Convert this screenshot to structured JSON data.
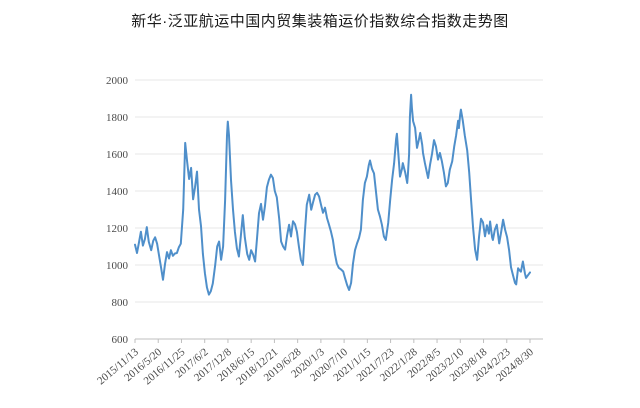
{
  "title": "新华·泛亚航运中国内贸集装箱运价指数综合指数走势图",
  "chart_data": {
    "type": "line",
    "title": "新华·泛亚航运中国内贸集装箱运价指数综合指数走势图",
    "legend": false,
    "grid": true,
    "series_name": "综合指数",
    "series_color": "#4f8fca",
    "y_axis": {
      "min": 600,
      "max": 2000,
      "step": 200,
      "tick_labels": [
        "600",
        "800",
        "1000",
        "1200",
        "1400",
        "1600",
        "1800",
        "2000"
      ]
    },
    "x_axis": {
      "tick_labels": [
        "2015/11/13",
        "2016/5/20",
        "2016/11/25",
        "2017/6/2",
        "2017/12/8",
        "2018/6/15",
        "2018/12/21",
        "2019/6/28",
        "2020/1/3",
        "2020/7/10",
        "2021/1/15",
        "2021/7/23",
        "2022/1/28",
        "2022/8/5",
        "2023/2/10",
        "2023/8/18",
        "2024/2/23",
        "2024/8/30"
      ]
    },
    "points": [
      [
        0.0,
        1110
      ],
      [
        0.005,
        1065
      ],
      [
        0.01,
        1120
      ],
      [
        0.015,
        1180
      ],
      [
        0.02,
        1105
      ],
      [
        0.025,
        1140
      ],
      [
        0.03,
        1205
      ],
      [
        0.035,
        1125
      ],
      [
        0.041,
        1080
      ],
      [
        0.046,
        1130
      ],
      [
        0.051,
        1150
      ],
      [
        0.056,
        1115
      ],
      [
        0.061,
        1050
      ],
      [
        0.066,
        985
      ],
      [
        0.071,
        920
      ],
      [
        0.076,
        1005
      ],
      [
        0.081,
        1070
      ],
      [
        0.086,
        1035
      ],
      [
        0.091,
        1080
      ],
      [
        0.096,
        1050
      ],
      [
        0.101,
        1062
      ],
      [
        0.106,
        1065
      ],
      [
        0.111,
        1095
      ],
      [
        0.116,
        1115
      ],
      [
        0.122,
        1300
      ],
      [
        0.127,
        1660
      ],
      [
        0.132,
        1560
      ],
      [
        0.137,
        1465
      ],
      [
        0.142,
        1525
      ],
      [
        0.147,
        1355
      ],
      [
        0.152,
        1420
      ],
      [
        0.157,
        1505
      ],
      [
        0.162,
        1300
      ],
      [
        0.167,
        1210
      ],
      [
        0.172,
        1060
      ],
      [
        0.177,
        956
      ],
      [
        0.182,
        880
      ],
      [
        0.187,
        840
      ],
      [
        0.192,
        858
      ],
      [
        0.197,
        900
      ],
      [
        0.203,
        1000
      ],
      [
        0.208,
        1100
      ],
      [
        0.213,
        1127
      ],
      [
        0.218,
        1028
      ],
      [
        0.223,
        1100
      ],
      [
        0.228,
        1350
      ],
      [
        0.233,
        1700
      ],
      [
        0.235,
        1775
      ],
      [
        0.238,
        1700
      ],
      [
        0.243,
        1460
      ],
      [
        0.248,
        1300
      ],
      [
        0.253,
        1180
      ],
      [
        0.258,
        1090
      ],
      [
        0.263,
        1046
      ],
      [
        0.268,
        1160
      ],
      [
        0.273,
        1270
      ],
      [
        0.278,
        1150
      ],
      [
        0.284,
        1060
      ],
      [
        0.289,
        1028
      ],
      [
        0.294,
        1080
      ],
      [
        0.299,
        1056
      ],
      [
        0.304,
        1019
      ],
      [
        0.309,
        1150
      ],
      [
        0.314,
        1280
      ],
      [
        0.319,
        1330
      ],
      [
        0.324,
        1245
      ],
      [
        0.329,
        1320
      ],
      [
        0.334,
        1420
      ],
      [
        0.339,
        1461
      ],
      [
        0.344,
        1488
      ],
      [
        0.349,
        1470
      ],
      [
        0.354,
        1400
      ],
      [
        0.359,
        1366
      ],
      [
        0.365,
        1250
      ],
      [
        0.37,
        1127
      ],
      [
        0.375,
        1100
      ],
      [
        0.38,
        1083
      ],
      [
        0.385,
        1160
      ],
      [
        0.39,
        1218
      ],
      [
        0.395,
        1154
      ],
      [
        0.4,
        1236
      ],
      [
        0.405,
        1220
      ],
      [
        0.41,
        1180
      ],
      [
        0.415,
        1100
      ],
      [
        0.42,
        1028
      ],
      [
        0.425,
        1000
      ],
      [
        0.43,
        1180
      ],
      [
        0.435,
        1326
      ],
      [
        0.441,
        1380
      ],
      [
        0.446,
        1299
      ],
      [
        0.451,
        1340
      ],
      [
        0.456,
        1380
      ],
      [
        0.461,
        1390
      ],
      [
        0.466,
        1370
      ],
      [
        0.471,
        1326
      ],
      [
        0.476,
        1282
      ],
      [
        0.481,
        1310
      ],
      [
        0.486,
        1254
      ],
      [
        0.491,
        1220
      ],
      [
        0.496,
        1182
      ],
      [
        0.501,
        1135
      ],
      [
        0.506,
        1060
      ],
      [
        0.511,
        1008
      ],
      [
        0.516,
        985
      ],
      [
        0.522,
        975
      ],
      [
        0.527,
        965
      ],
      [
        0.532,
        928
      ],
      [
        0.537,
        892
      ],
      [
        0.542,
        865
      ],
      [
        0.547,
        903
      ],
      [
        0.552,
        1008
      ],
      [
        0.557,
        1080
      ],
      [
        0.562,
        1116
      ],
      [
        0.567,
        1146
      ],
      [
        0.572,
        1191
      ],
      [
        0.577,
        1353
      ],
      [
        0.582,
        1444
      ],
      [
        0.587,
        1478
      ],
      [
        0.592,
        1540
      ],
      [
        0.595,
        1565
      ],
      [
        0.6,
        1520
      ],
      [
        0.605,
        1495
      ],
      [
        0.61,
        1400
      ],
      [
        0.615,
        1300
      ],
      [
        0.62,
        1263
      ],
      [
        0.625,
        1218
      ],
      [
        0.63,
        1154
      ],
      [
        0.635,
        1135
      ],
      [
        0.641,
        1227
      ],
      [
        0.646,
        1353
      ],
      [
        0.651,
        1460
      ],
      [
        0.656,
        1550
      ],
      [
        0.661,
        1680
      ],
      [
        0.663,
        1710
      ],
      [
        0.668,
        1560
      ],
      [
        0.671,
        1478
      ],
      [
        0.676,
        1520
      ],
      [
        0.678,
        1551
      ],
      [
        0.684,
        1500
      ],
      [
        0.689,
        1443
      ],
      [
        0.691,
        1490
      ],
      [
        0.694,
        1600
      ],
      [
        0.696,
        1800
      ],
      [
        0.699,
        1920
      ],
      [
        0.701,
        1850
      ],
      [
        0.704,
        1778
      ],
      [
        0.709,
        1741
      ],
      [
        0.714,
        1633
      ],
      [
        0.719,
        1680
      ],
      [
        0.722,
        1714
      ],
      [
        0.727,
        1650
      ],
      [
        0.729,
        1606
      ],
      [
        0.734,
        1551
      ],
      [
        0.739,
        1500
      ],
      [
        0.742,
        1470
      ],
      [
        0.747,
        1544
      ],
      [
        0.752,
        1600
      ],
      [
        0.757,
        1675
      ],
      [
        0.762,
        1640
      ],
      [
        0.767,
        1570
      ],
      [
        0.772,
        1606
      ],
      [
        0.777,
        1560
      ],
      [
        0.782,
        1500
      ],
      [
        0.787,
        1425
      ],
      [
        0.792,
        1443
      ],
      [
        0.797,
        1515
      ],
      [
        0.803,
        1560
      ],
      [
        0.808,
        1640
      ],
      [
        0.813,
        1700
      ],
      [
        0.818,
        1780
      ],
      [
        0.82,
        1740
      ],
      [
        0.823,
        1810
      ],
      [
        0.825,
        1840
      ],
      [
        0.83,
        1780
      ],
      [
        0.835,
        1700
      ],
      [
        0.841,
        1620
      ],
      [
        0.846,
        1500
      ],
      [
        0.851,
        1350
      ],
      [
        0.856,
        1200
      ],
      [
        0.861,
        1083
      ],
      [
        0.866,
        1028
      ],
      [
        0.871,
        1150
      ],
      [
        0.876,
        1250
      ],
      [
        0.881,
        1230
      ],
      [
        0.886,
        1155
      ],
      [
        0.891,
        1215
      ],
      [
        0.896,
        1170
      ],
      [
        0.899,
        1235
      ],
      [
        0.904,
        1150
      ],
      [
        0.906,
        1135
      ],
      [
        0.911,
        1190
      ],
      [
        0.916,
        1218
      ],
      [
        0.922,
        1117
      ],
      [
        0.927,
        1180
      ],
      [
        0.932,
        1245
      ],
      [
        0.937,
        1191
      ],
      [
        0.942,
        1150
      ],
      [
        0.947,
        1080
      ],
      [
        0.952,
        988
      ],
      [
        0.957,
        945
      ],
      [
        0.962,
        903
      ],
      [
        0.965,
        895
      ],
      [
        0.97,
        982
      ],
      [
        0.975,
        968
      ],
      [
        0.977,
        964
      ],
      [
        0.982,
        1019
      ],
      [
        0.987,
        955
      ],
      [
        0.99,
        930
      ],
      [
        0.995,
        945
      ],
      [
        1.0,
        960
      ]
    ]
  }
}
